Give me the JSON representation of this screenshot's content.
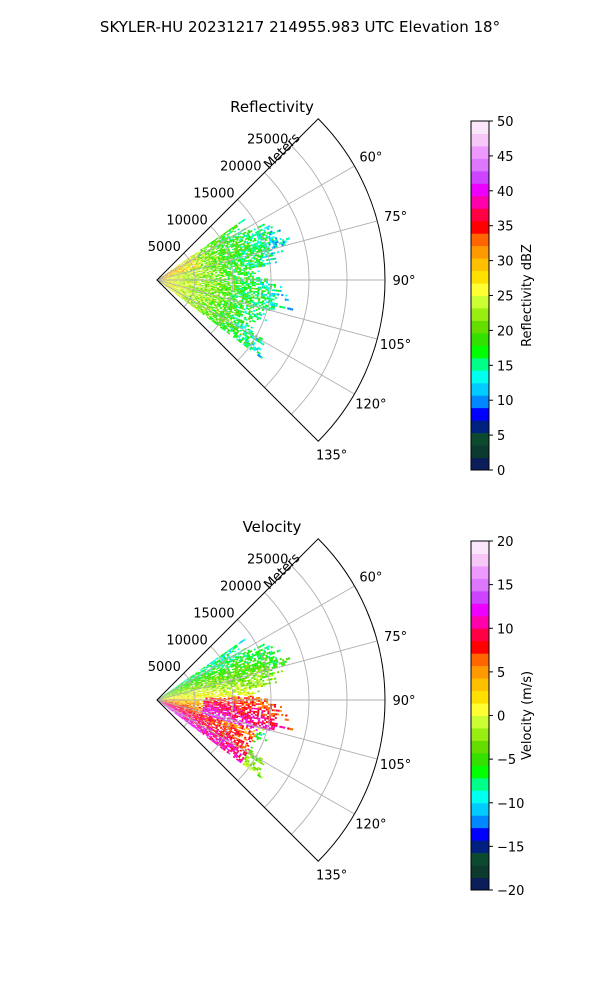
{
  "suptitle": "SKYLER-HU  20231217  214955.983 UTC Elevation 18°",
  "chart_data": [
    {
      "type": "polar",
      "title": "Reflectivity",
      "radial_label": "Meters",
      "theta_range_deg": [
        45,
        135
      ],
      "r_max_m": 30000,
      "r_ticks": [
        5000,
        10000,
        15000,
        20000,
        25000
      ],
      "r_tick_labels": [
        "5000",
        "10000",
        "15000",
        "20000",
        "25000"
      ],
      "theta_ticks": [
        60,
        75,
        90,
        105,
        120,
        135
      ],
      "theta_tick_labels": [
        "60°",
        "75°",
        "90°",
        "105°",
        "120°",
        "135°"
      ],
      "grid": true,
      "data_extent": {
        "theta_start_deg": 55,
        "theta_end_deg": 127,
        "r_max_m_approx": 17000
      },
      "colorbar": {
        "label": "Reflectivity dBZ",
        "range": [
          0,
          50
        ],
        "ticks": [
          0,
          5,
          10,
          15,
          20,
          25,
          30,
          35,
          40,
          45,
          50
        ],
        "tick_labels": [
          "0",
          "5",
          "10",
          "15",
          "20",
          "25",
          "30",
          "35",
          "40",
          "45",
          "50"
        ],
        "colormap": [
          "#0b1e5a",
          "#0d3a2e",
          "#0c4a30",
          "#00207f",
          "#0000ff",
          "#0088ff",
          "#00ccff",
          "#00ffee",
          "#00ff88",
          "#00ff00",
          "#33e000",
          "#66dd00",
          "#99ee11",
          "#ccff33",
          "#ffff33",
          "#ffe000",
          "#ffc000",
          "#ff9900",
          "#ff6600",
          "#ff0000",
          "#ff0044",
          "#ff00aa",
          "#ee00ff",
          "#cc44ff",
          "#dd77ff",
          "#ee99ff",
          "#f7c8f7",
          "#fce6fb"
        ]
      }
    },
    {
      "type": "polar",
      "title": "Velocity",
      "radial_label": "Meters",
      "theta_range_deg": [
        45,
        135
      ],
      "r_max_m": 30000,
      "r_ticks": [
        5000,
        10000,
        15000,
        20000,
        25000
      ],
      "r_tick_labels": [
        "5000",
        "10000",
        "15000",
        "20000",
        "25000"
      ],
      "theta_ticks": [
        60,
        75,
        90,
        105,
        120,
        135
      ],
      "theta_tick_labels": [
        "60°",
        "75°",
        "90°",
        "105°",
        "120°",
        "135°"
      ],
      "grid": true,
      "data_extent": {
        "theta_start_deg": 55,
        "theta_end_deg": 127,
        "r_max_m_approx": 17000
      },
      "colorbar": {
        "label": "Velocity (m/s)",
        "range": [
          -20,
          20
        ],
        "ticks": [
          -20,
          -15,
          -10,
          -5,
          0,
          5,
          10,
          15,
          20
        ],
        "tick_labels": [
          "−20",
          "−15",
          "−10",
          "−5",
          "0",
          "5",
          "10",
          "15",
          "20"
        ],
        "colormap": [
          "#0b1e5a",
          "#0d3a2e",
          "#0c4a30",
          "#00207f",
          "#0000ff",
          "#0088ff",
          "#00ccff",
          "#00ffee",
          "#00ff88",
          "#00ff00",
          "#33e000",
          "#66dd00",
          "#99ee11",
          "#ccff33",
          "#ffff33",
          "#ffe000",
          "#ffc000",
          "#ff9900",
          "#ff6600",
          "#ff0000",
          "#ff0044",
          "#ff00aa",
          "#ee00ff",
          "#cc44ff",
          "#dd77ff",
          "#ee99ff",
          "#f7c8f7",
          "#fce6fb"
        ]
      }
    }
  ]
}
